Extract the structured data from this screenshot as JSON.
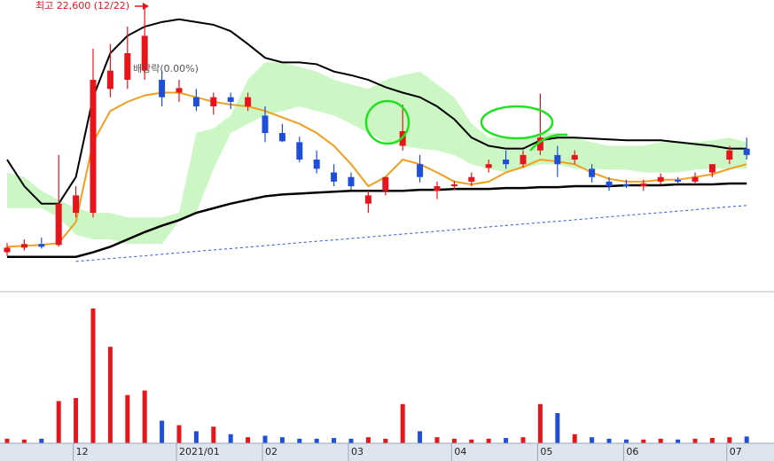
{
  "chart_data": {
    "type": "candlestick",
    "high_label": "최고 22,600 (12/22)",
    "event_label": "배당락(0.00%)",
    "categories": [
      null,
      null,
      null,
      null,
      "12",
      null,
      null,
      null,
      null,
      null,
      "2021/01",
      null,
      null,
      null,
      null,
      "02",
      null,
      null,
      null,
      null,
      "03",
      null,
      null,
      null,
      null,
      null,
      "04",
      null,
      null,
      null,
      null,
      "05",
      null,
      null,
      null,
      null,
      "06",
      null,
      null,
      null,
      null,
      null,
      "07",
      null
    ],
    "open": [
      9100,
      9350,
      9550,
      9500,
      11250,
      11250,
      18000,
      18500,
      19000,
      18500,
      17800,
      17550,
      17050,
      17550,
      17050,
      16550,
      15600,
      15100,
      14150,
      13450,
      13200,
      11750,
      12450,
      14900,
      13900,
      12450,
      12700,
      12950,
      13700,
      14150,
      13900,
      14650,
      14400,
      14150,
      13650,
      12950,
      12800,
      12700,
      12950,
      13050,
      12950,
      13450,
      14150,
      14750
    ],
    "high": [
      9600,
      9800,
      9900,
      14400,
      12700,
      20200,
      20450,
      21400,
      22600,
      19000,
      18500,
      18000,
      17800,
      17800,
      17800,
      17050,
      16100,
      15400,
      14650,
      13900,
      13450,
      12450,
      13200,
      17150,
      14400,
      12950,
      13000,
      13450,
      14150,
      14650,
      14650,
      17750,
      14900,
      14650,
      13900,
      13200,
      13050,
      13050,
      13400,
      13200,
      13450,
      13900,
      14900,
      15350
    ],
    "low": [
      8900,
      9200,
      9300,
      9400,
      11000,
      11000,
      17550,
      18000,
      18500,
      17050,
      17300,
      16800,
      16600,
      16900,
      16800,
      15100,
      15100,
      14000,
      13400,
      12700,
      12500,
      11250,
      12200,
      14650,
      12900,
      12000,
      12500,
      12700,
      13450,
      13650,
      13700,
      14400,
      13200,
      13900,
      12900,
      12450,
      12600,
      12450,
      12800,
      12800,
      12800,
      13200,
      13900,
      14150
    ],
    "close": [
      9350,
      9550,
      9400,
      11750,
      12200,
      18500,
      19000,
      19950,
      20900,
      17550,
      18050,
      17050,
      17550,
      17300,
      17550,
      15600,
      15150,
      14150,
      13650,
      12950,
      12700,
      12200,
      13200,
      15700,
      13200,
      12700,
      12800,
      13200,
      13900,
      13900,
      14400,
      15350,
      13900,
      14400,
      13200,
      12700,
      12700,
      12850,
      13200,
      12950,
      13200,
      13900,
      14650,
      14400
    ],
    "up_color": "#e8141b",
    "down_color": "#1f4fd8",
    "ylim": [
      7000,
      22850
    ],
    "cloud": {
      "color": "#ccf7c4",
      "upper": [
        13450,
        13200,
        12450,
        11950,
        11500,
        11250,
        11250,
        11000,
        11000,
        11000,
        11250,
        15600,
        15850,
        16550,
        18500,
        19450,
        19450,
        19200,
        18950,
        18500,
        18250,
        18000,
        18500,
        18750,
        18950,
        18250,
        17550,
        16100,
        15350,
        15350,
        15350,
        15600,
        15600,
        15350,
        15100,
        14900,
        14900,
        14900,
        15100,
        15100,
        15100,
        15200,
        15350,
        15100
      ],
      "lower": [
        11500,
        11500,
        11500,
        11000,
        10050,
        9800,
        9800,
        9550,
        9550,
        9550,
        10800,
        11250,
        13650,
        15600,
        16100,
        16550,
        16800,
        17050,
        16800,
        16550,
        16100,
        15600,
        15100,
        14900,
        14750,
        14650,
        14400,
        13900,
        13650,
        13450,
        13650,
        13900,
        13900,
        13650,
        13650,
        13600,
        13600,
        13450,
        13450,
        13450,
        13600,
        13650,
        13650,
        13650
      ]
    },
    "lines": [
      {
        "color": "#000000",
        "width": 2,
        "dashed": false,
        "values": [
          14150,
          12700,
          11750,
          11750,
          13200,
          17550,
          19950,
          20900,
          21400,
          21650,
          21800,
          21650,
          21500,
          21150,
          20450,
          19700,
          19450,
          19450,
          19350,
          18950,
          18750,
          18500,
          18100,
          17800,
          17550,
          17050,
          16350,
          15350,
          14900,
          14750,
          14750,
          15200,
          15350,
          15350,
          15300,
          15250,
          15200,
          15200,
          15200,
          15100,
          15000,
          14900,
          14750,
          14750
        ]
      },
      {
        "color": "#000000",
        "width": 2.5,
        "dashed": false,
        "values": [
          8850,
          8850,
          8850,
          8850,
          8850,
          9100,
          9400,
          9800,
          10200,
          10550,
          10850,
          11250,
          11500,
          11750,
          11950,
          12150,
          12250,
          12300,
          12350,
          12400,
          12450,
          12450,
          12450,
          12450,
          12500,
          12500,
          12550,
          12550,
          12550,
          12600,
          12600,
          12650,
          12650,
          12700,
          12700,
          12700,
          12750,
          12750,
          12750,
          12800,
          12800,
          12800,
          12850,
          12850
        ]
      },
      {
        "color": "#f0a020",
        "width": 2,
        "dashed": false,
        "values": [
          9400,
          9450,
          9500,
          9600,
          10750,
          15100,
          16800,
          17300,
          17650,
          17800,
          17800,
          17550,
          17300,
          17150,
          17050,
          16800,
          16450,
          16100,
          15600,
          14900,
          13900,
          12700,
          13200,
          14150,
          13900,
          13450,
          12950,
          12800,
          12950,
          13450,
          13750,
          14150,
          14050,
          13900,
          13450,
          13100,
          12950,
          12950,
          13050,
          13050,
          13200,
          13350,
          13650,
          13900
        ]
      },
      {
        "color": "#3050e0",
        "width": 1,
        "dashed": true,
        "values": [
          null,
          null,
          null,
          null,
          8600,
          8680,
          8760,
          8830,
          8910,
          8990,
          9070,
          9150,
          9230,
          9300,
          9380,
          9460,
          9540,
          9620,
          9700,
          9770,
          9850,
          9930,
          10010,
          10090,
          10170,
          10250,
          10320,
          10400,
          10480,
          10560,
          10640,
          10720,
          10790,
          10870,
          10950,
          11030,
          11110,
          11190,
          11260,
          11340,
          11420,
          11500,
          11580,
          11650
        ]
      }
    ],
    "volume": {
      "ylim": [
        0,
        1000
      ],
      "values": [
        30,
        25,
        30,
        280,
        300,
        894,
        640,
        320,
        350,
        150,
        120,
        80,
        110,
        60,
        40,
        50,
        40,
        30,
        30,
        35,
        30,
        40,
        30,
        260,
        80,
        40,
        30,
        25,
        30,
        35,
        40,
        260,
        200,
        60,
        40,
        30,
        25,
        25,
        30,
        25,
        30,
        35,
        40,
        45
      ]
    }
  }
}
